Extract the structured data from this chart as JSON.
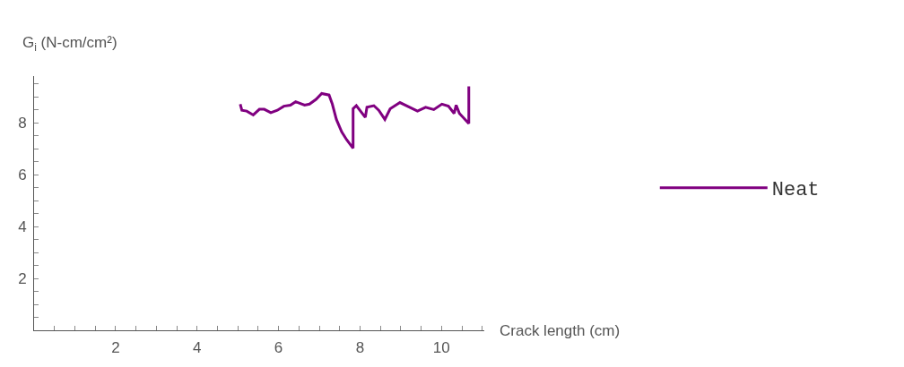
{
  "chart_data": {
    "type": "line",
    "xlabel": "Crack length (cm)",
    "ylabel": "G$_{i}$ (N-cm/cm²)",
    "x": [
      5.06,
      5.1,
      5.22,
      5.38,
      5.53,
      5.65,
      5.81,
      5.97,
      6.13,
      6.29,
      6.42,
      6.64,
      6.76,
      6.92,
      7.06,
      7.24,
      7.32,
      7.42,
      7.55,
      7.67,
      7.83,
      7.83,
      7.91,
      8.13,
      8.17,
      8.34,
      8.46,
      8.61,
      8.74,
      8.98,
      9.41,
      9.61,
      9.81,
      10.01,
      10.17,
      10.31,
      10.36,
      10.44,
      10.67,
      10.67
    ],
    "series": [
      {
        "name": "Neat",
        "color": "#800080",
        "values": [
          8.72,
          8.48,
          8.45,
          8.3,
          8.52,
          8.52,
          8.39,
          8.48,
          8.64,
          8.68,
          8.81,
          8.68,
          8.72,
          8.9,
          9.13,
          9.07,
          8.72,
          8.13,
          7.65,
          7.35,
          7.02,
          8.54,
          8.66,
          8.21,
          8.6,
          8.66,
          8.48,
          8.13,
          8.54,
          8.78,
          8.45,
          8.6,
          8.51,
          8.72,
          8.64,
          8.36,
          8.68,
          8.36,
          7.97,
          9.4
        ]
      }
    ],
    "xlim": [
      0,
      11.05
    ],
    "ylim": [
      0,
      9.8
    ],
    "xticks": [
      {
        "value": 0.5,
        "label": null
      },
      {
        "value": 1,
        "label": null
      },
      {
        "value": 1.5,
        "label": null
      },
      2,
      {
        "value": 2.5,
        "label": null
      },
      {
        "value": 3,
        "label": null
      },
      {
        "value": 3.5,
        "label": null
      },
      4,
      {
        "value": 4.5,
        "label": null
      },
      {
        "value": 5,
        "label": null
      },
      {
        "value": 5.5,
        "label": null
      },
      6,
      {
        "value": 6.5,
        "label": null
      },
      {
        "value": 7,
        "label": null
      },
      {
        "value": 7.5,
        "label": null
      },
      8,
      {
        "value": 8.5,
        "label": null
      },
      {
        "value": 9,
        "label": null
      },
      {
        "value": 9.5,
        "label": null
      },
      10,
      {
        "value": 10.5,
        "label": null
      },
      {
        "value": 11,
        "label": null
      }
    ],
    "yticks": [
      {
        "value": 0.5,
        "label": null
      },
      {
        "value": 1,
        "label": null
      },
      {
        "value": 1.5,
        "label": null
      },
      2,
      {
        "value": 2.5,
        "label": null
      },
      {
        "value": 3,
        "label": null
      },
      {
        "value": 3.5,
        "label": null
      },
      4,
      {
        "value": 4.5,
        "label": null
      },
      {
        "value": 5,
        "label": null
      },
      {
        "value": 5.5,
        "label": null
      },
      6,
      {
        "value": 6.5,
        "label": null
      },
      {
        "value": 7,
        "label": null
      },
      {
        "value": 7.5,
        "label": null
      },
      8,
      {
        "value": 8.5,
        "label": null
      },
      {
        "value": 9,
        "label": null
      },
      {
        "value": 9.5,
        "label": null
      }
    ],
    "legend": "right",
    "marker": "none",
    "line_style": "solid"
  }
}
